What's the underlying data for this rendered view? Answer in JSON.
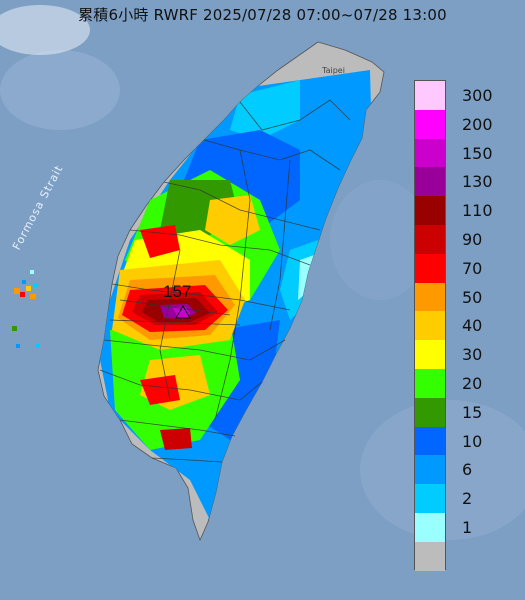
{
  "title": "累積6小時 RWRF 2025/07/28 07:00~07/28 13:00",
  "map_labels": {
    "strait": "Formosa Strait",
    "city": "Taipei"
  },
  "max_value_label": "157",
  "legend": {
    "items": [
      {
        "label": "300",
        "color": "#ffc8ff"
      },
      {
        "label": "200",
        "color": "#ff00ff"
      },
      {
        "label": "150",
        "color": "#cc00cc"
      },
      {
        "label": "130",
        "color": "#99009a"
      },
      {
        "label": "110",
        "color": "#990000"
      },
      {
        "label": "90",
        "color": "#cc0000"
      },
      {
        "label": "70",
        "color": "#ff0000"
      },
      {
        "label": "50",
        "color": "#ff9900"
      },
      {
        "label": "40",
        "color": "#ffcc00"
      },
      {
        "label": "30",
        "color": "#ffff00"
      },
      {
        "label": "20",
        "color": "#33ff00"
      },
      {
        "label": "15",
        "color": "#339900"
      },
      {
        "label": "10",
        "color": "#0066ff"
      },
      {
        "label": "6",
        "color": "#0099ff"
      },
      {
        "label": "2",
        "color": "#00ccff"
      },
      {
        "label": "1",
        "color": "#99ffff"
      },
      {
        "label": "",
        "color": "#bcbcbc"
      }
    ]
  },
  "colors": {
    "sea": "#7d9fc4",
    "land_base": "#bcbcbc"
  }
}
